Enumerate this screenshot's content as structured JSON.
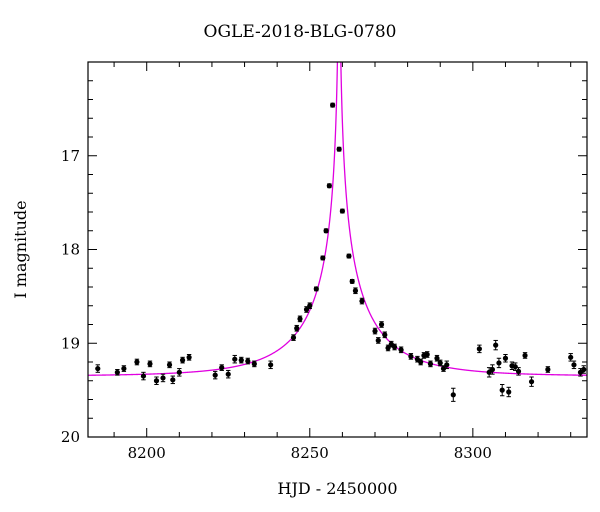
{
  "chart_data": {
    "type": "scatter",
    "title": "OGLE-2018-BLG-0780",
    "xlabel": "HJD - 2450000",
    "ylabel": "I magnitude",
    "xlim": [
      8182,
      8335
    ],
    "ylim": [
      20.0,
      16.0
    ],
    "y_inverted": true,
    "x_ticks": [
      8200,
      8250,
      8300
    ],
    "x_tick_labels": [
      "8200",
      "8250",
      "8300"
    ],
    "y_ticks": [
      17,
      18,
      19,
      20
    ],
    "y_tick_labels": [
      "17",
      "18",
      "19",
      "20"
    ],
    "grid": false,
    "colors": {
      "points": "#000000",
      "model": "#e000e0"
    },
    "model": {
      "t0": 8259.0,
      "tE": 26.0,
      "u0": 0.006,
      "baseline": 19.35,
      "f_source": 0.45
    },
    "series": [
      {
        "points": [
          {
            "x": 8185,
            "y": 19.27,
            "err": 0.04
          },
          {
            "x": 8191,
            "y": 19.31,
            "err": 0.03
          },
          {
            "x": 8193,
            "y": 19.27,
            "err": 0.03
          },
          {
            "x": 8197,
            "y": 19.2,
            "err": 0.03
          },
          {
            "x": 8199,
            "y": 19.35,
            "err": 0.04
          },
          {
            "x": 8201,
            "y": 19.22,
            "err": 0.03
          },
          {
            "x": 8203,
            "y": 19.4,
            "err": 0.04
          },
          {
            "x": 8205,
            "y": 19.37,
            "err": 0.04
          },
          {
            "x": 8207,
            "y": 19.23,
            "err": 0.03
          },
          {
            "x": 8208,
            "y": 19.39,
            "err": 0.04
          },
          {
            "x": 8210,
            "y": 19.31,
            "err": 0.04
          },
          {
            "x": 8211,
            "y": 19.18,
            "err": 0.03
          },
          {
            "x": 8213,
            "y": 19.15,
            "err": 0.03
          },
          {
            "x": 8221,
            "y": 19.34,
            "err": 0.04
          },
          {
            "x": 8223,
            "y": 19.26,
            "err": 0.03
          },
          {
            "x": 8225,
            "y": 19.33,
            "err": 0.04
          },
          {
            "x": 8227,
            "y": 19.17,
            "err": 0.04
          },
          {
            "x": 8229,
            "y": 19.18,
            "err": 0.03
          },
          {
            "x": 8231,
            "y": 19.19,
            "err": 0.03
          },
          {
            "x": 8233,
            "y": 19.22,
            "err": 0.03
          },
          {
            "x": 8238,
            "y": 19.23,
            "err": 0.04
          },
          {
            "x": 8245,
            "y": 18.94,
            "err": 0.03
          },
          {
            "x": 8246,
            "y": 18.84,
            "err": 0.03
          },
          {
            "x": 8247,
            "y": 18.74,
            "err": 0.03
          },
          {
            "x": 8249,
            "y": 18.64,
            "err": 0.03
          },
          {
            "x": 8250,
            "y": 18.6,
            "err": 0.03
          },
          {
            "x": 8252,
            "y": 18.42,
            "err": 0.02
          },
          {
            "x": 8254,
            "y": 18.09,
            "err": 0.02
          },
          {
            "x": 8255,
            "y": 17.8,
            "err": 0.02
          },
          {
            "x": 8256,
            "y": 17.32,
            "err": 0.02
          },
          {
            "x": 8257,
            "y": 16.46,
            "err": 0.02
          },
          {
            "x": 8259,
            "y": 16.93,
            "err": 0.02
          },
          {
            "x": 8260,
            "y": 17.59,
            "err": 0.02
          },
          {
            "x": 8262,
            "y": 18.07,
            "err": 0.02
          },
          {
            "x": 8263,
            "y": 18.34,
            "err": 0.02
          },
          {
            "x": 8264,
            "y": 18.44,
            "err": 0.03
          },
          {
            "x": 8266,
            "y": 18.55,
            "err": 0.03
          },
          {
            "x": 8270,
            "y": 18.87,
            "err": 0.03
          },
          {
            "x": 8271,
            "y": 18.97,
            "err": 0.03
          },
          {
            "x": 8272,
            "y": 18.8,
            "err": 0.03
          },
          {
            "x": 8273,
            "y": 18.91,
            "err": 0.03
          },
          {
            "x": 8274,
            "y": 19.05,
            "err": 0.03
          },
          {
            "x": 8275,
            "y": 19.01,
            "err": 0.03
          },
          {
            "x": 8276,
            "y": 19.04,
            "err": 0.03
          },
          {
            "x": 8278,
            "y": 19.07,
            "err": 0.03
          },
          {
            "x": 8281,
            "y": 19.14,
            "err": 0.03
          },
          {
            "x": 8283,
            "y": 19.17,
            "err": 0.03
          },
          {
            "x": 8284,
            "y": 19.2,
            "err": 0.03
          },
          {
            "x": 8285,
            "y": 19.13,
            "err": 0.03
          },
          {
            "x": 8286,
            "y": 19.12,
            "err": 0.03
          },
          {
            "x": 8287,
            "y": 19.22,
            "err": 0.03
          },
          {
            "x": 8289,
            "y": 19.16,
            "err": 0.03
          },
          {
            "x": 8290,
            "y": 19.21,
            "err": 0.03
          },
          {
            "x": 8291,
            "y": 19.27,
            "err": 0.03
          },
          {
            "x": 8292,
            "y": 19.23,
            "err": 0.04
          },
          {
            "x": 8294,
            "y": 19.55,
            "err": 0.07
          },
          {
            "x": 8302,
            "y": 19.06,
            "err": 0.04
          },
          {
            "x": 8305,
            "y": 19.31,
            "err": 0.05
          },
          {
            "x": 8306,
            "y": 19.28,
            "err": 0.05
          },
          {
            "x": 8307,
            "y": 19.02,
            "err": 0.05
          },
          {
            "x": 8308,
            "y": 19.21,
            "err": 0.05
          },
          {
            "x": 8309,
            "y": 19.5,
            "err": 0.06
          },
          {
            "x": 8310,
            "y": 19.16,
            "err": 0.04
          },
          {
            "x": 8311,
            "y": 19.52,
            "err": 0.05
          },
          {
            "x": 8312,
            "y": 19.24,
            "err": 0.04
          },
          {
            "x": 8313,
            "y": 19.25,
            "err": 0.04
          },
          {
            "x": 8314,
            "y": 19.3,
            "err": 0.04
          },
          {
            "x": 8316,
            "y": 19.13,
            "err": 0.03
          },
          {
            "x": 8318,
            "y": 19.41,
            "err": 0.05
          },
          {
            "x": 8323,
            "y": 19.28,
            "err": 0.03
          },
          {
            "x": 8330,
            "y": 19.15,
            "err": 0.04
          },
          {
            "x": 8331,
            "y": 19.23,
            "err": 0.04
          },
          {
            "x": 8333,
            "y": 19.31,
            "err": 0.04
          },
          {
            "x": 8334,
            "y": 19.28,
            "err": 0.04
          },
          {
            "x": 8336,
            "y": 19.36,
            "err": 0.04
          }
        ]
      }
    ]
  }
}
